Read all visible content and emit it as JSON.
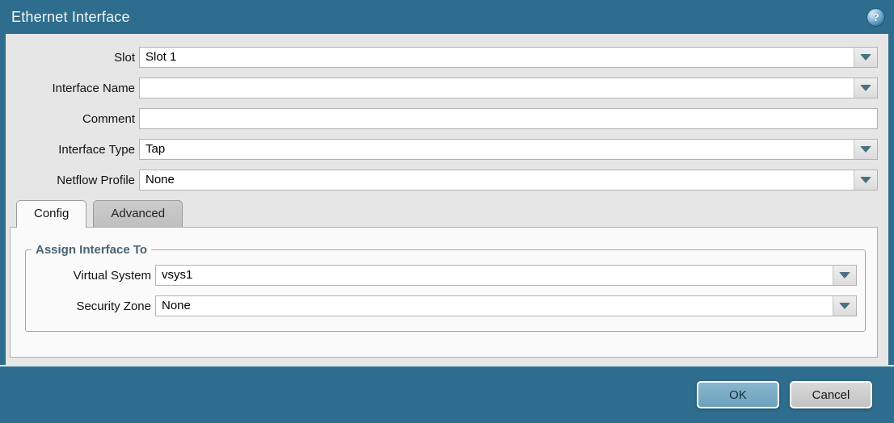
{
  "dialog": {
    "title": "Ethernet Interface"
  },
  "form": {
    "fields": [
      {
        "label": "Slot",
        "value": "Slot 1",
        "type": "dropdown"
      },
      {
        "label": "Interface Name",
        "value": "",
        "type": "dropdown"
      },
      {
        "label": "Comment",
        "value": "",
        "type": "text"
      },
      {
        "label": "Interface Type",
        "value": "Tap",
        "type": "dropdown"
      },
      {
        "label": "Netflow Profile",
        "value": "None",
        "type": "dropdown"
      }
    ]
  },
  "tabs": [
    {
      "label": "Config",
      "active": true
    },
    {
      "label": "Advanced",
      "active": false
    }
  ],
  "config_tab": {
    "group_title": "Assign Interface To",
    "fields": [
      {
        "label": "Virtual System",
        "value": "vsys1",
        "type": "dropdown"
      },
      {
        "label": "Security Zone",
        "value": "None",
        "type": "dropdown"
      }
    ]
  },
  "footer": {
    "ok_label": "OK",
    "cancel_label": "Cancel"
  },
  "icons": {
    "help": "help-icon",
    "dropdown_arrow": "chevron-down-icon"
  },
  "colors": {
    "titlebar": "#2e6d8d",
    "body": "#e6e6e6",
    "panel": "#fafafa",
    "ok_button": "#74a8c3",
    "cancel_button": "#c9c9c9",
    "arrow": "#4a7183",
    "legend_text": "#4a6372"
  },
  "help_glyph": "?"
}
